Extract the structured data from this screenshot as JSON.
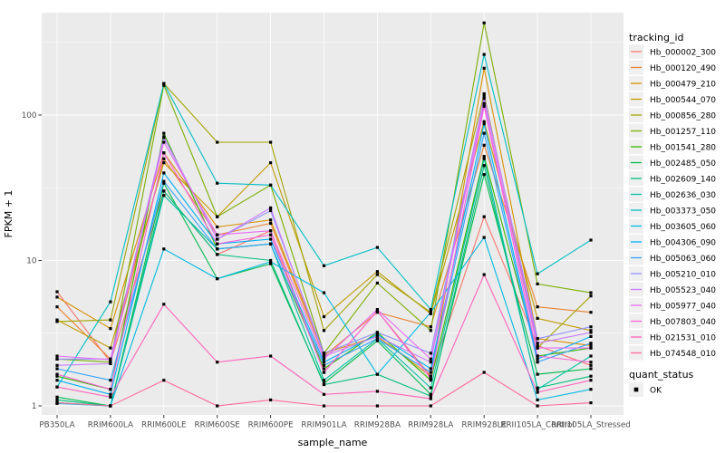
{
  "chart_data": {
    "type": "line",
    "title": "",
    "xlabel": "sample_name",
    "ylabel": "FPKM + 1",
    "y_scale": "log10",
    "y_ticks": [
      1,
      10,
      100
    ],
    "y_tick_labels": [
      "1",
      "10",
      "100"
    ],
    "y_minor_ticks": [
      3.162,
      31.62,
      316.2
    ],
    "ylim": [
      0.87,
      510
    ],
    "grid": "on",
    "legend_position": "right",
    "point_marker": "black-square",
    "categories": [
      "PB350LA",
      "RRIM600LA",
      "RRIM600LE",
      "RRIM600SE",
      "RRIM600PE",
      "RRIM901LA",
      "RRIM928BA",
      "RRIM928LA",
      "RRIM928LE",
      "RRII105LA_Control",
      "RRII105LA_Stressed"
    ],
    "series": [
      {
        "name": "Hb_000002_300",
        "color": "#F8766D",
        "quant_status": "OK",
        "values": [
          6.1,
          2.0,
          30,
          11,
          16,
          1.7,
          4.5,
          1.6,
          20,
          2.6,
          1.9
        ]
      },
      {
        "name": "Hb_000120_490",
        "color": "#EA8331",
        "quant_status": "OK",
        "values": [
          4.8,
          2.1,
          50,
          15,
          18,
          2.2,
          4.4,
          3.5,
          62,
          4.8,
          4.4
        ]
      },
      {
        "name": "Hb_000479_210",
        "color": "#D89000",
        "quant_status": "OK",
        "values": [
          5.6,
          3.4,
          55,
          17,
          19,
          2.3,
          3.0,
          1.6,
          210,
          2.9,
          2.6
        ]
      },
      {
        "name": "Hb_000544_070",
        "color": "#C09B00",
        "quant_status": "OK",
        "values": [
          3.9,
          2.5,
          47,
          20,
          47,
          4.1,
          8.4,
          4.3,
          90,
          4.0,
          3.3
        ]
      },
      {
        "name": "Hb_000856_280",
        "color": "#A3A500",
        "quant_status": "OK",
        "values": [
          3.8,
          3.9,
          165,
          65,
          65,
          3.3,
          8.0,
          4.4,
          140,
          2.5,
          5.7
        ]
      },
      {
        "name": "Hb_001257_110",
        "color": "#7CAE00",
        "quant_status": "OK",
        "values": [
          2.1,
          2.0,
          160,
          20,
          33,
          2.3,
          7.0,
          3.3,
          430,
          6.9,
          6.0
        ]
      },
      {
        "name": "Hb_001541_280",
        "color": "#39B600",
        "quant_status": "OK",
        "values": [
          1.6,
          1.3,
          75,
          12,
          13,
          1.8,
          3.2,
          1.5,
          52,
          2.2,
          2.5
        ]
      },
      {
        "name": "Hb_002485_050",
        "color": "#00BB4E",
        "quant_status": "OK",
        "values": [
          1.15,
          1.0,
          34,
          7.5,
          9.5,
          1.43,
          2.8,
          1.2,
          39,
          1.65,
          1.8
        ]
      },
      {
        "name": "Hb_002609_140",
        "color": "#00BF7D",
        "quant_status": "OK",
        "values": [
          1.1,
          1.0,
          30,
          11,
          10,
          1.4,
          1.65,
          1.17,
          45,
          1.33,
          1.6
        ]
      },
      {
        "name": "Hb_002636_030",
        "color": "#00C1A3",
        "quant_status": "OK",
        "values": [
          1.05,
          1.0,
          28,
          12,
          13,
          1.5,
          2.9,
          1.33,
          50,
          1.3,
          2.2
        ]
      },
      {
        "name": "Hb_003373_050",
        "color": "#00BFC4",
        "quant_status": "OK",
        "values": [
          1.35,
          5.2,
          165,
          34,
          33,
          9.2,
          12.3,
          4.6,
          261,
          8.1,
          13.8
        ]
      },
      {
        "name": "Hb_003605_060",
        "color": "#00BAE0",
        "quant_status": "OK",
        "values": [
          1.04,
          1.0,
          12,
          7.5,
          9.8,
          6.0,
          1.65,
          4.4,
          14.4,
          1.1,
          1.3
        ]
      },
      {
        "name": "Hb_004306_090",
        "color": "#00B0F6",
        "quant_status": "OK",
        "values": [
          1.5,
          1.2,
          40,
          13,
          14,
          2.0,
          3.1,
          1.8,
          87,
          2.1,
          3.0
        ]
      },
      {
        "name": "Hb_005063_060",
        "color": "#35A2FF",
        "quant_status": "OK",
        "values": [
          1.8,
          1.5,
          35,
          12,
          13,
          1.9,
          2.9,
          1.7,
          75,
          2.0,
          2.7
        ]
      },
      {
        "name": "Hb_005210_010",
        "color": "#9590FF",
        "quant_status": "OK",
        "values": [
          2.1,
          2.1,
          70,
          14,
          22,
          2.3,
          3.2,
          2.3,
          130,
          2.9,
          3.5
        ]
      },
      {
        "name": "Hb_005523_040",
        "color": "#C77CFF",
        "quant_status": "OK",
        "values": [
          1.9,
          1.95,
          71,
          14,
          23,
          2.2,
          3.0,
          2.0,
          135,
          2.7,
          3.2
        ]
      },
      {
        "name": "Hb_005977_040",
        "color": "#E76BF3",
        "quant_status": "OK",
        "values": [
          2.2,
          2.08,
          65,
          15,
          16,
          2.1,
          4.6,
          2.1,
          120,
          2.5,
          2.5
        ]
      },
      {
        "name": "Hb_007803_040",
        "color": "#FA62DB",
        "quant_status": "OK",
        "values": [
          1.65,
          1.3,
          55,
          13,
          15,
          1.7,
          4.5,
          1.54,
          115,
          2.2,
          2.0
        ]
      },
      {
        "name": "Hb_021531_010",
        "color": "#FF62BC",
        "quant_status": "OK",
        "values": [
          1.35,
          1.15,
          5.0,
          2.0,
          2.2,
          1.2,
          1.26,
          1.12,
          8.0,
          1.24,
          1.5
        ]
      },
      {
        "name": "Hb_074548_010",
        "color": "#FF6A98",
        "quant_status": "OK",
        "values": [
          1.05,
          1.0,
          1.5,
          1.0,
          1.1,
          1.0,
          1.0,
          1.0,
          1.7,
          1.0,
          1.05
        ]
      }
    ]
  },
  "legend": {
    "tracking_title": "tracking_id",
    "quant_title": "quant_status",
    "quant_items": [
      {
        "label": "OK",
        "marker": "black-square"
      }
    ]
  },
  "colors": {
    "panel_bg": "#EBEBEB",
    "gridline": "#FFFFFF",
    "tick_text": "#4D4D4D",
    "axis_text": "#000000",
    "point": "#000000",
    "legend_key_bg": "#EFEFEF"
  }
}
